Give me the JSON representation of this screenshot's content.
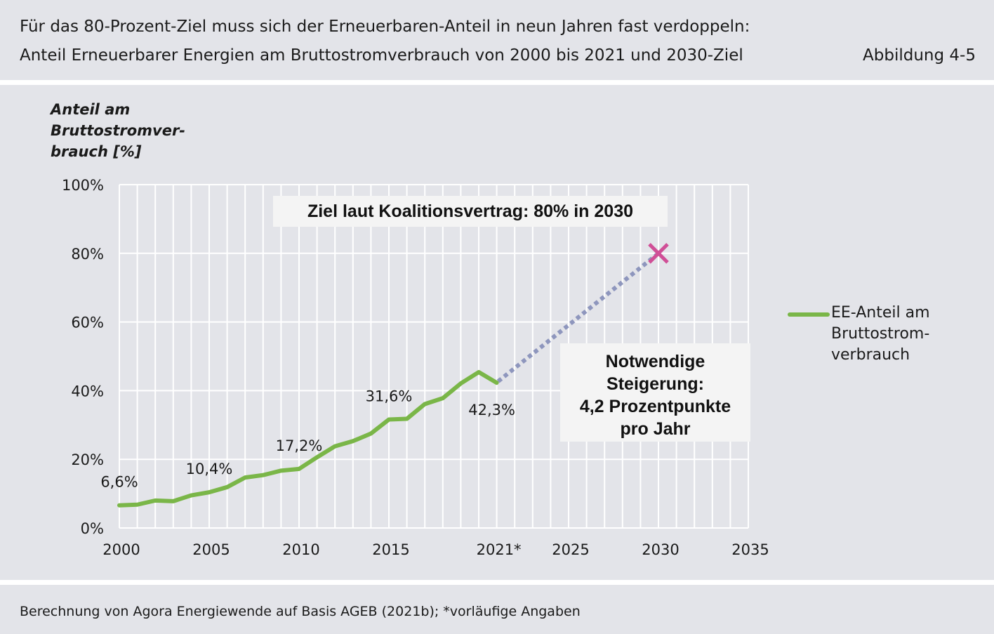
{
  "header": {
    "title_line1": "Für das 80-Prozent-Ziel muss sich der Erneuerbaren-Anteil in neun Jahren fast verdoppeln:",
    "title_line2": "Anteil Erneuerbarer Energien am Bruttostromverbrauch von 2000 bis 2021 und 2030-Ziel",
    "figure_number": "Abbildung 4-5"
  },
  "footer": {
    "source": "Berechnung von Agora Energiewende auf Basis AGEB (2021b); *vorläufige Angaben"
  },
  "colors": {
    "background_panel": "#e3e4e9",
    "series_line": "#7ab648",
    "projection_line": "#8e96bd",
    "target_marker": "#d04f97",
    "grid": "#ffffff"
  },
  "chart_data": {
    "type": "line",
    "ylabel_lines": [
      "Anteil am",
      "Bruttostromver-",
      "brauch [%]"
    ],
    "xlabel": "",
    "xlim": [
      2000,
      2035
    ],
    "ylim": [
      0,
      100
    ],
    "grid": true,
    "x_ticks": [
      {
        "value": 2000,
        "label": "2000"
      },
      {
        "value": 2005,
        "label": "2005"
      },
      {
        "value": 2010,
        "label": "2010"
      },
      {
        "value": 2015,
        "label": "2015"
      },
      {
        "value": 2021,
        "label": "2021*"
      },
      {
        "value": 2025,
        "label": "2025"
      },
      {
        "value": 2030,
        "label": "2030"
      },
      {
        "value": 2035,
        "label": "2035"
      }
    ],
    "y_ticks": [
      {
        "value": 0,
        "label": "0%"
      },
      {
        "value": 20,
        "label": "20%"
      },
      {
        "value": 40,
        "label": "40%"
      },
      {
        "value": 60,
        "label": "60%"
      },
      {
        "value": 80,
        "label": "80%"
      },
      {
        "value": 100,
        "label": "100%"
      }
    ],
    "series": [
      {
        "name": "EE-Anteil am Bruttostrom-verbrauch",
        "legend_lines": [
          "EE-Anteil am",
          "Bruttostrom-",
          "verbrauch"
        ],
        "x": [
          2000,
          2001,
          2002,
          2003,
          2004,
          2005,
          2006,
          2007,
          2008,
          2009,
          2010,
          2011,
          2012,
          2013,
          2014,
          2015,
          2016,
          2017,
          2018,
          2019,
          2020,
          2021
        ],
        "y": [
          6.6,
          6.8,
          8.0,
          7.8,
          9.5,
          10.4,
          11.9,
          14.7,
          15.4,
          16.7,
          17.2,
          20.6,
          23.8,
          25.3,
          27.5,
          31.6,
          31.8,
          36.1,
          37.8,
          42.1,
          45.4,
          42.3
        ]
      }
    ],
    "projection": {
      "from": {
        "x": 2021,
        "y": 42.3
      },
      "to": {
        "x": 2030,
        "y": 80
      },
      "style": "dotted"
    },
    "target_marker": {
      "x": 2030,
      "y": 80,
      "symbol": "x"
    },
    "data_labels": [
      {
        "x": 2000,
        "y": 6.6,
        "text": "6,6%"
      },
      {
        "x": 2005,
        "y": 10.4,
        "text": "10,4%"
      },
      {
        "x": 2010,
        "y": 17.2,
        "text": "17,2%"
      },
      {
        "x": 2015,
        "y": 31.6,
        "text": "31,6%"
      },
      {
        "x": 2021,
        "y": 42.3,
        "text": "42,3%"
      }
    ],
    "annotations": {
      "target": "Ziel laut Koalitionsvertrag: 80% in 2030",
      "rate_lines": [
        "Notwendige",
        "Steigerung:",
        "4,2 Prozentpunkte",
        "pro Jahr"
      ]
    }
  }
}
